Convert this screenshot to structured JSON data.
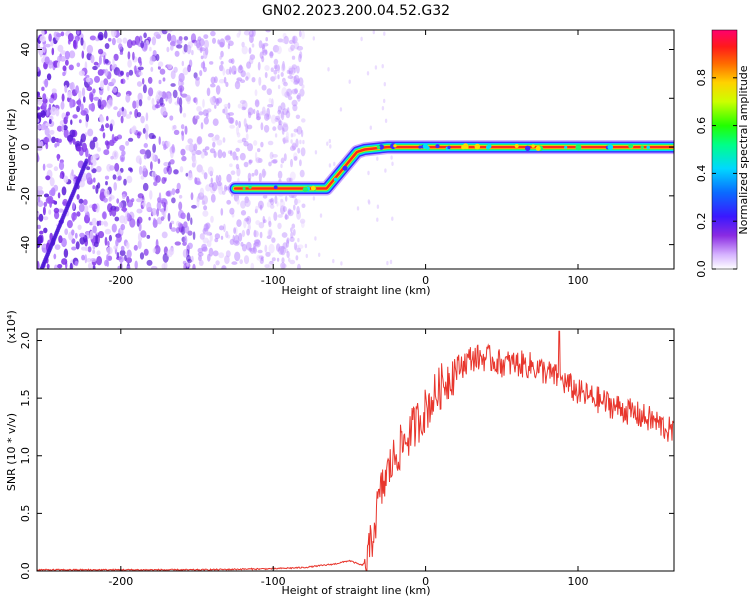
{
  "title": "GN02.2023.200.04.52.G32",
  "chart_data": [
    {
      "type": "heatmap",
      "xlabel": "Height of straight line (km)",
      "ylabel": "Frequency (Hz)",
      "xlim": [
        -255,
        163
      ],
      "ylim": [
        -50,
        48
      ],
      "xticks": [
        -200,
        -100,
        0,
        100
      ],
      "yticks": [
        -40,
        -20,
        0,
        20,
        40
      ],
      "colorbar": {
        "label": "Normalized spectral amplitude",
        "range": [
          0,
          1
        ],
        "ticks": [
          "0.0",
          "0.2",
          "0.4",
          "0.6",
          "0.8"
        ],
        "tick_values": [
          0,
          0.2,
          0.4,
          0.6,
          0.8
        ]
      },
      "ridge": [
        {
          "x": -125,
          "y": -17
        },
        {
          "x": -65,
          "y": -17
        },
        {
          "x": -45,
          "y": -2
        },
        {
          "x": -40,
          "y": -1
        },
        {
          "x": -25,
          "y": 0
        },
        {
          "x": 163,
          "y": 0
        }
      ],
      "noise_region_x": [
        -255,
        -80
      ]
    },
    {
      "type": "line",
      "xlabel": "Height of straight line (km)",
      "ylabel": "SNR (10 * v/v)",
      "multiplier": "(x10⁴)",
      "xlim": [
        -255,
        163
      ],
      "ylim": [
        0,
        2.1
      ],
      "xticks": [
        -200,
        -100,
        0,
        100
      ],
      "yticks": [
        0.0,
        0.5,
        1.0,
        1.5,
        2.0
      ],
      "ytick_labels": [
        "0.0",
        "0.5",
        "1.0",
        "1.5",
        "2.0"
      ],
      "series": [
        {
          "color": "#e8362d",
          "x": [
            -255,
            -200,
            -150,
            -100,
            -80,
            -60,
            -50,
            -42,
            -38,
            -35,
            -30,
            -25,
            -20,
            -15,
            -10,
            -5,
            0,
            10,
            20,
            30,
            40,
            50,
            60,
            70,
            80,
            90,
            100,
            110,
            120,
            130,
            140,
            150,
            160,
            163
          ],
          "y": [
            0.01,
            0.01,
            0.01,
            0.02,
            0.03,
            0.06,
            0.09,
            0.05,
            0.08,
            0.3,
            0.65,
            0.85,
            1.0,
            1.1,
            1.2,
            1.3,
            1.4,
            1.6,
            1.75,
            1.85,
            1.85,
            1.8,
            1.8,
            1.78,
            1.72,
            1.65,
            1.55,
            1.5,
            1.45,
            1.4,
            1.35,
            1.3,
            1.22,
            1.2
          ]
        }
      ]
    }
  ]
}
